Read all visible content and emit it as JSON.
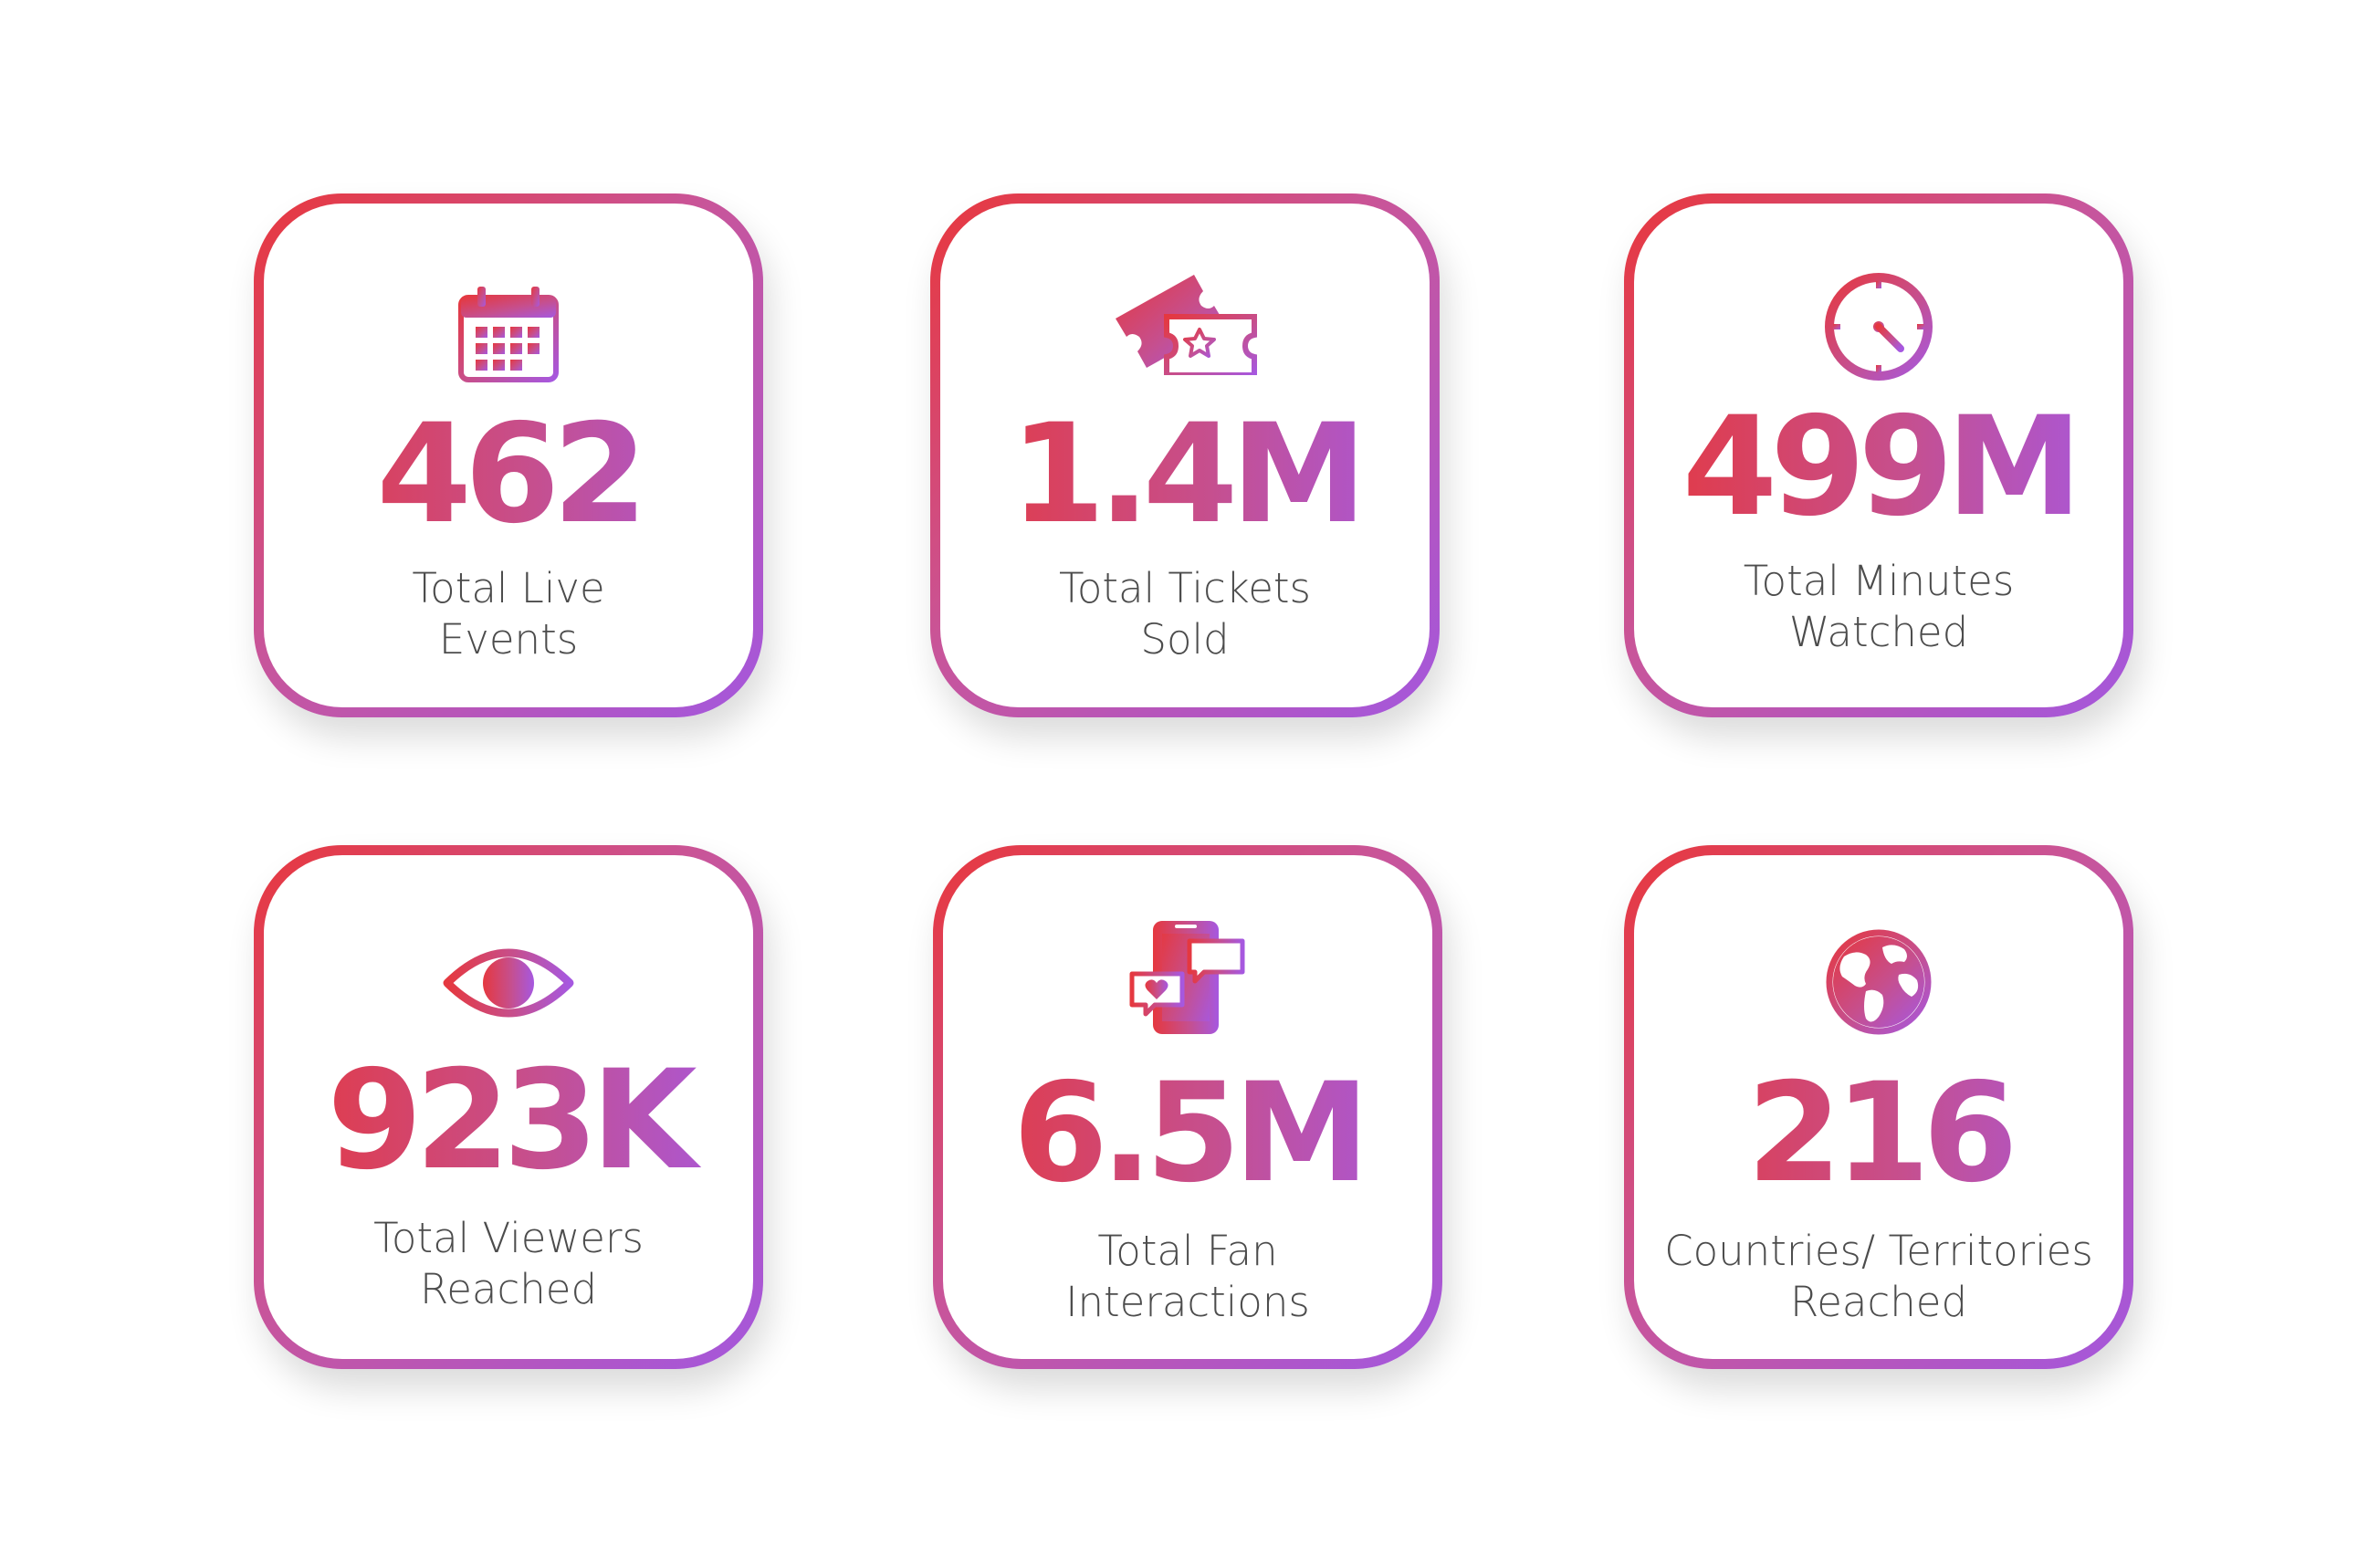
{
  "colors": {
    "gradient_start": "#e8373c",
    "gradient_mid": "#c8559a",
    "gradient_end": "#a457dd",
    "label_text": "#4c4c4c",
    "background": "#ffffff"
  },
  "stats": [
    {
      "icon": "calendar-icon",
      "value": "462",
      "label_line1": "Total Live",
      "label_line2": "Events"
    },
    {
      "icon": "ticket-icon",
      "value": "1.4M",
      "label_line1": "Total Tickets",
      "label_line2": "Sold"
    },
    {
      "icon": "clock-icon",
      "value": "499M",
      "label_line1": "Total Minutes",
      "label_line2": "Watched"
    },
    {
      "icon": "eye-icon",
      "value": "923K",
      "label_line1": "Total Viewers",
      "label_line2": "Reached"
    },
    {
      "icon": "phone-chat-icon",
      "value": "6.5M",
      "label_line1": "Total Fan",
      "label_line2": "Interactions"
    },
    {
      "icon": "globe-icon",
      "value": "216",
      "label_line1": "Countries/ Territories",
      "label_line2": "Reached"
    }
  ]
}
